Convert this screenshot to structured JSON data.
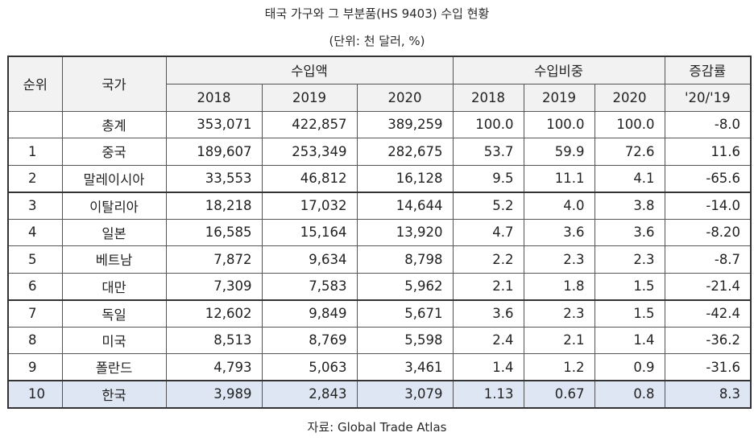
{
  "title": "태국 가구와 그 부분품(HS 9403) 수입 현황",
  "unit": "(단위: 천 달러, %)",
  "source": "자료: Global Trade Atlas",
  "header": {
    "rank": "순위",
    "country": "국가",
    "import_amount": "수입액",
    "import_share": "수입비중",
    "change": "증감률",
    "years": [
      "2018",
      "2019",
      "2020"
    ],
    "change_period": "'20/'19"
  },
  "rows": [
    {
      "rank": "",
      "country": "총계",
      "amt": [
        "353,071",
        "422,857",
        "389,259"
      ],
      "share": [
        "100.0",
        "100.0",
        "100.0"
      ],
      "change": "-8.0"
    },
    {
      "rank": "1",
      "country": "중국",
      "amt": [
        "189,607",
        "253,349",
        "282,675"
      ],
      "share": [
        "53.7",
        "59.9",
        "72.6"
      ],
      "change": "11.6"
    },
    {
      "rank": "2",
      "country": "말레이시아",
      "amt": [
        "33,553",
        "46,812",
        "16,128"
      ],
      "share": [
        "9.5",
        "11.1",
        "4.1"
      ],
      "change": "-65.6"
    },
    {
      "rank": "3",
      "country": "이탈리아",
      "amt": [
        "18,218",
        "17,032",
        "14,644"
      ],
      "share": [
        "5.2",
        "4.0",
        "3.8"
      ],
      "change": "-14.0"
    },
    {
      "rank": "4",
      "country": "일본",
      "amt": [
        "16,585",
        "15,164",
        "13,920"
      ],
      "share": [
        "4.7",
        "3.6",
        "3.6"
      ],
      "change": "-8.20"
    },
    {
      "rank": "5",
      "country": "베트남",
      "amt": [
        "7,872",
        "9,634",
        "8,798"
      ],
      "share": [
        "2.2",
        "2.3",
        "2.3"
      ],
      "change": "-8.7"
    },
    {
      "rank": "6",
      "country": "대만",
      "amt": [
        "7,309",
        "7,583",
        "5,962"
      ],
      "share": [
        "2.1",
        "1.8",
        "1.5"
      ],
      "change": "-21.4"
    },
    {
      "rank": "7",
      "country": "독일",
      "amt": [
        "12,602",
        "9,849",
        "5,671"
      ],
      "share": [
        "3.6",
        "2.3",
        "1.5"
      ],
      "change": "-42.4"
    },
    {
      "rank": "8",
      "country": "미국",
      "amt": [
        "8,513",
        "8,769",
        "5,598"
      ],
      "share": [
        "2.4",
        "2.1",
        "1.4"
      ],
      "change": "-36.2"
    },
    {
      "rank": "9",
      "country": "폴란드",
      "amt": [
        "4,793",
        "5,063",
        "3,461"
      ],
      "share": [
        "1.4",
        "1.2",
        "0.9"
      ],
      "change": "-31.6"
    },
    {
      "rank": "10",
      "country": "한국",
      "amt": [
        "3,989",
        "2,843",
        "3,079"
      ],
      "share": [
        "1.13",
        "0.67",
        "0.8"
      ],
      "change": "8.3"
    }
  ]
}
